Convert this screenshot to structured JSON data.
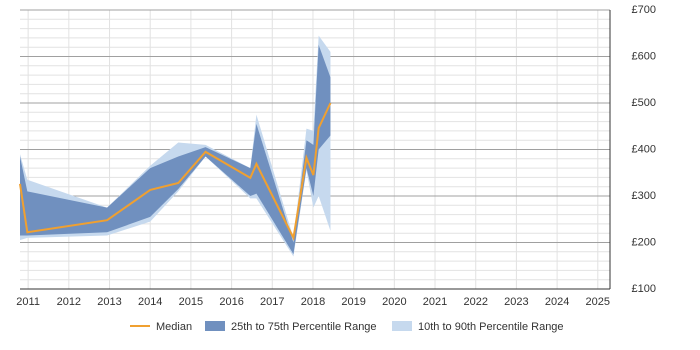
{
  "chart_data": {
    "type": "range-line",
    "x": [
      2010.8,
      2010.98,
      2012.94,
      2014.0,
      2014.69,
      2015.36,
      2016.46,
      2016.61,
      2017.52,
      2017.84,
      2018.01,
      2018.14,
      2018.43
    ],
    "series": [
      {
        "name": "Median",
        "color": "#f0a030",
        "values": [
          326,
          222,
          248,
          313,
          328,
          395,
          339,
          369,
          210,
          382,
          345,
          446,
          500
        ]
      },
      {
        "name": "25th to 75th Percentile Range",
        "color": "#7090bf",
        "lower": [
          215,
          215,
          222,
          255,
          315,
          385,
          300,
          305,
          175,
          360,
          300,
          400,
          430
        ],
        "upper": [
          385,
          310,
          275,
          360,
          385,
          405,
          360,
          455,
          200,
          420,
          410,
          625,
          555
        ]
      },
      {
        "name": "10th to 90th Percentile Range",
        "color": "#c6d9ee",
        "lower": [
          205,
          210,
          215,
          245,
          310,
          385,
          295,
          295,
          170,
          355,
          275,
          300,
          225
        ],
        "upper": [
          390,
          335,
          275,
          365,
          415,
          410,
          360,
          475,
          210,
          445,
          440,
          645,
          610
        ]
      }
    ],
    "xlim": [
      2010.8,
      2025.3
    ],
    "xticks": [
      2011,
      2012,
      2013,
      2014,
      2015,
      2016,
      2017,
      2018,
      2019,
      2020,
      2021,
      2022,
      2023,
      2024,
      2025
    ],
    "ylim": [
      100,
      700
    ],
    "yticks": [
      {
        "value": 100,
        "label": "£100"
      },
      {
        "value": 200,
        "label": "£200"
      },
      {
        "value": 300,
        "label": "£300"
      },
      {
        "value": 400,
        "label": "£400"
      },
      {
        "value": 500,
        "label": "£500"
      },
      {
        "value": 600,
        "label": "£600"
      },
      {
        "value": 700,
        "label": "£700"
      }
    ],
    "minor_yticks": [
      120,
      140,
      160,
      180,
      220,
      240,
      260,
      280,
      320,
      340,
      360,
      380,
      420,
      440,
      460,
      480,
      520,
      540,
      560,
      580,
      620,
      640,
      660,
      680
    ],
    "grid": true
  }
}
